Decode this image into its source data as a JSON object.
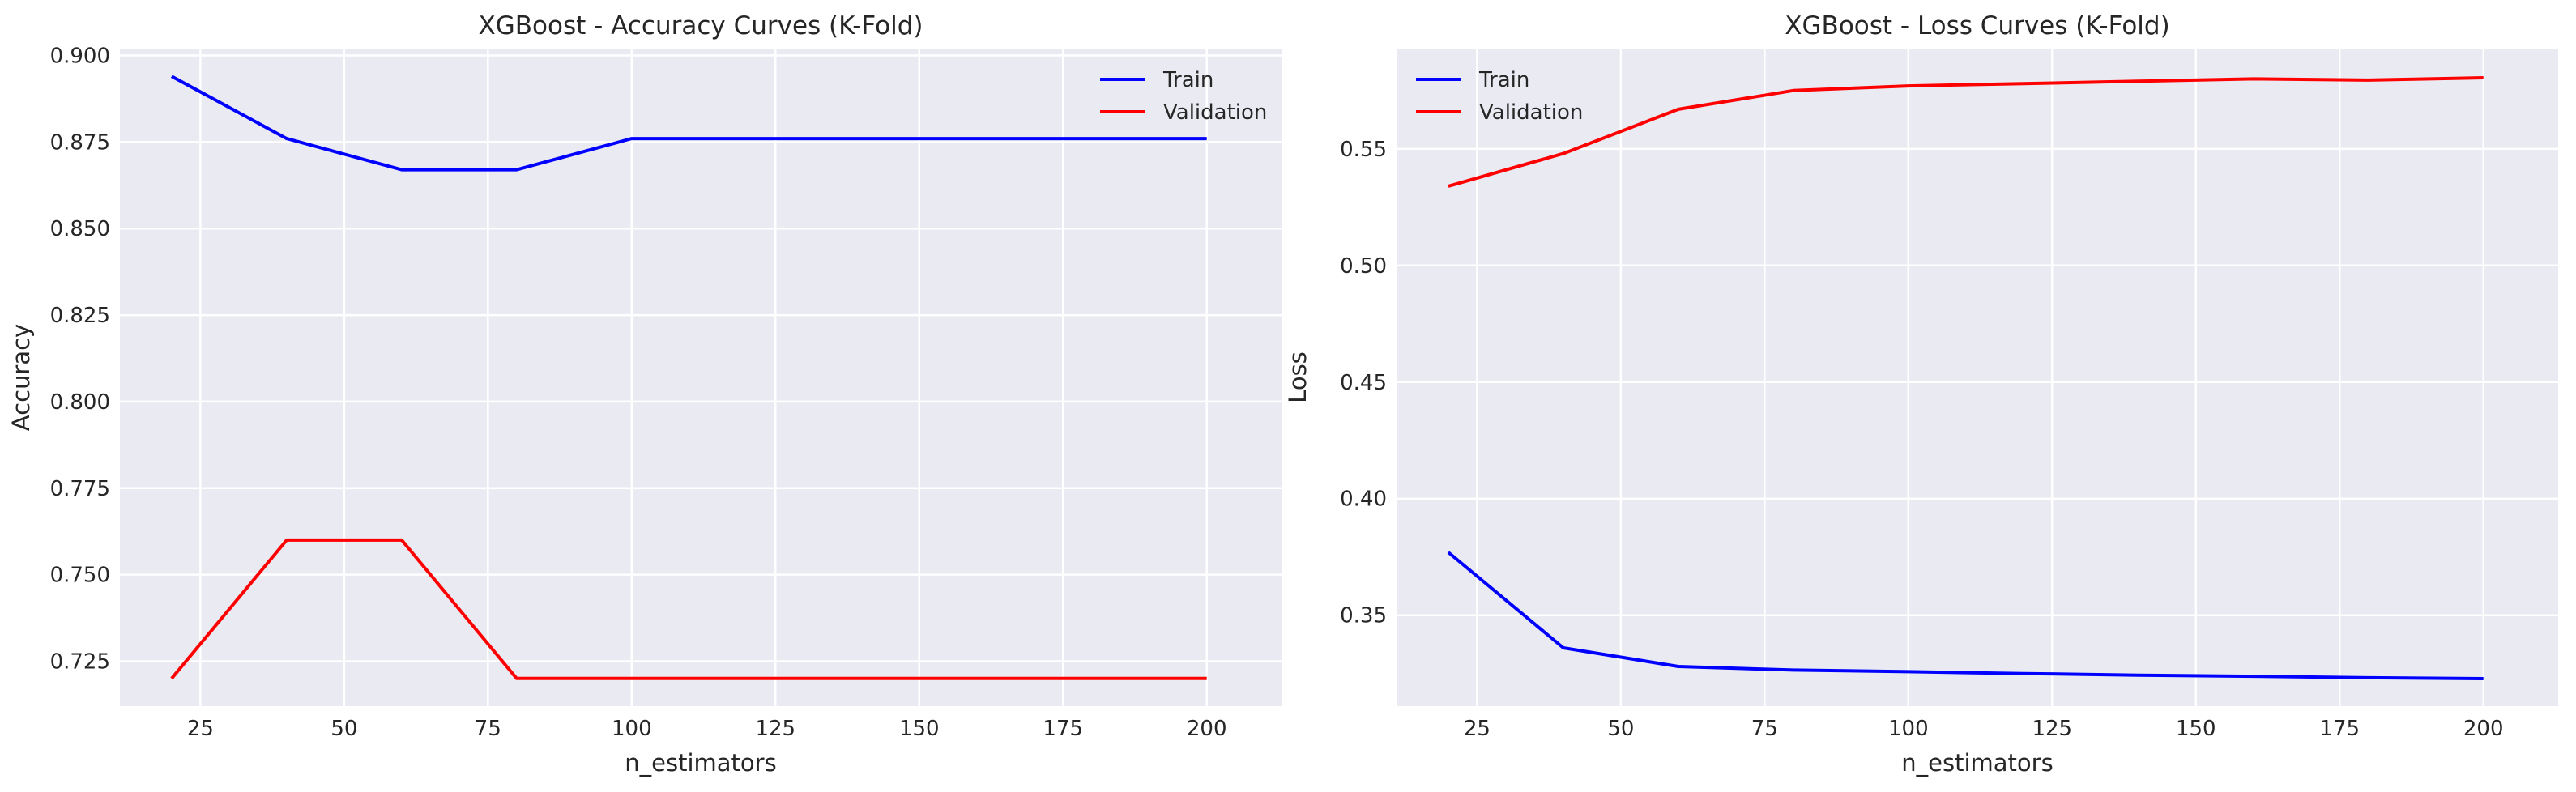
{
  "chart_data": [
    {
      "type": "line",
      "title": "XGBoost - Accuracy Curves (K-Fold)",
      "xlabel": "n_estimators",
      "ylabel": "Accuracy",
      "xlim": [
        11,
        213
      ],
      "ylim": [
        0.712,
        0.902
      ],
      "xticks": [
        25,
        50,
        75,
        100,
        125,
        150,
        175,
        200
      ],
      "yticks": [
        0.725,
        0.75,
        0.775,
        0.8,
        0.825,
        0.85,
        0.875,
        0.9
      ],
      "ytick_labels": [
        "0.725",
        "0.750",
        "0.775",
        "0.800",
        "0.825",
        "0.850",
        "0.875",
        "0.900"
      ],
      "grid": true,
      "legend_position": "top-right",
      "x": [
        20,
        40,
        60,
        80,
        100,
        120,
        140,
        160,
        180,
        200
      ],
      "series": [
        {
          "name": "Train",
          "color": "#0000ff",
          "values": [
            0.894,
            0.876,
            0.867,
            0.867,
            0.876,
            0.876,
            0.876,
            0.876,
            0.876,
            0.876
          ]
        },
        {
          "name": "Validation",
          "color": "#ff0000",
          "values": [
            0.72,
            0.76,
            0.76,
            0.72,
            0.72,
            0.72,
            0.72,
            0.72,
            0.72,
            0.72
          ]
        }
      ]
    },
    {
      "type": "line",
      "title": "XGBoost - Loss Curves (K-Fold)",
      "xlabel": "n_estimators",
      "ylabel": "Loss",
      "xlim": [
        11,
        213
      ],
      "ylim": [
        0.311,
        0.593
      ],
      "xticks": [
        25,
        50,
        75,
        100,
        125,
        150,
        175,
        200
      ],
      "yticks": [
        0.35,
        0.4,
        0.45,
        0.5,
        0.55
      ],
      "ytick_labels": [
        "0.35",
        "0.40",
        "0.45",
        "0.50",
        "0.55"
      ],
      "grid": true,
      "legend_position": "top-left",
      "x": [
        20,
        40,
        60,
        80,
        100,
        120,
        140,
        160,
        180,
        200
      ],
      "series": [
        {
          "name": "Train",
          "color": "#0000ff",
          "values": [
            0.377,
            0.336,
            0.328,
            0.3265,
            0.3258,
            0.325,
            0.3243,
            0.3238,
            0.3232,
            0.3228
          ]
        },
        {
          "name": "Validation",
          "color": "#ff0000",
          "values": [
            0.534,
            0.548,
            0.567,
            0.575,
            0.577,
            0.578,
            0.579,
            0.58,
            0.5795,
            0.5805
          ]
        }
      ]
    }
  ]
}
